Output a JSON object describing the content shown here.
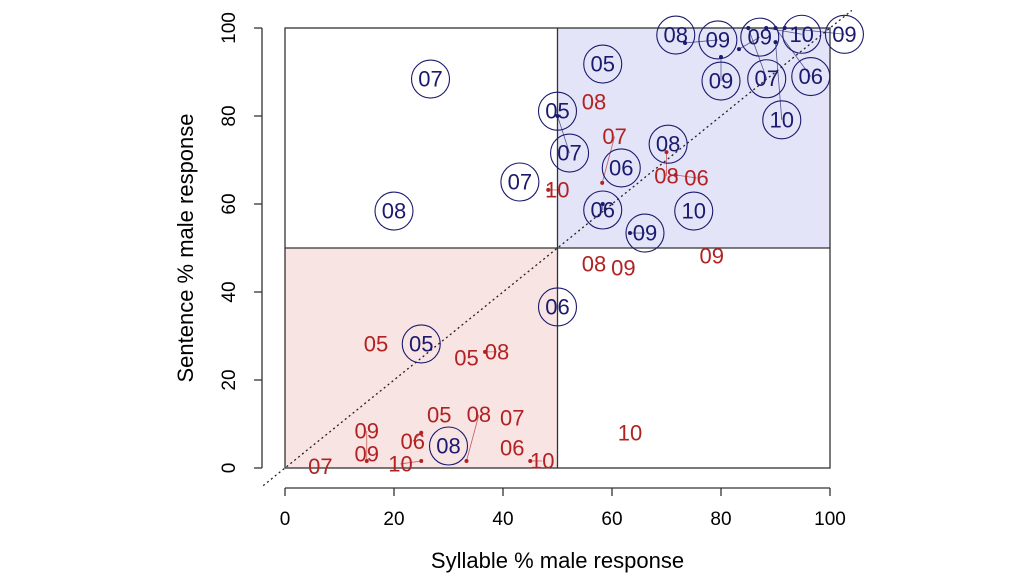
{
  "chart_data": {
    "type": "scatter",
    "title": "",
    "xlabel": "Syllable % male response",
    "ylabel": "Sentence % male response",
    "xlim": [
      0,
      100
    ],
    "ylim": [
      0,
      100
    ],
    "x_ticks": [
      "0",
      "20",
      "40",
      "60",
      "80",
      "100"
    ],
    "y_ticks": [
      "0",
      "20",
      "40",
      "60",
      "80",
      "100"
    ],
    "grid": false,
    "reference_line": {
      "type": "y=x",
      "style": "dotted"
    },
    "quadrant_divider": {
      "x": 50,
      "y": 50
    },
    "shaded_regions": [
      {
        "name": "upper-right",
        "x": [
          50,
          100
        ],
        "y": [
          50,
          100
        ],
        "color": "#e4e4f8"
      },
      {
        "name": "lower-left",
        "x": [
          0,
          50
        ],
        "y": [
          0,
          50
        ],
        "color": "#f9e4e4"
      }
    ],
    "series": [
      {
        "name": "circled",
        "color": "#1a1a6e",
        "marker": "circle",
        "points": [
          {
            "label": "07",
            "x": 26.7,
            "y": 88.4
          },
          {
            "label": "08",
            "x": 20.0,
            "y": 58.4
          },
          {
            "label": "07",
            "x": 43.1,
            "y": 65.0
          },
          {
            "label": "05",
            "x": 50.0,
            "y": 81.1
          },
          {
            "label": "07",
            "x": 50.0,
            "y": 80.0
          },
          {
            "label": "05",
            "x": 58.3,
            "y": 91.8
          },
          {
            "label": "06",
            "x": 61.7,
            "y": 68.2
          },
          {
            "label": "06",
            "x": 58.3,
            "y": 60.0
          },
          {
            "label": "09",
            "x": 63.3,
            "y": 53.4
          },
          {
            "label": "10",
            "x": 75.0,
            "y": 58.4
          },
          {
            "label": "08",
            "x": 70.3,
            "y": 73.6
          },
          {
            "label": "08",
            "x": 71.7,
            "y": 98.4
          },
          {
            "label": "09",
            "x": 73.4,
            "y": 96.6
          },
          {
            "label": "09",
            "x": 80.0,
            "y": 93.4
          },
          {
            "label": "09",
            "x": 83.3,
            "y": 95.2
          },
          {
            "label": "07",
            "x": 85.0,
            "y": 100.0
          },
          {
            "label": "10",
            "x": 88.3,
            "y": 100.0
          },
          {
            "label": "06",
            "x": 90.0,
            "y": 100.0
          },
          {
            "label": "09",
            "x": 91.7,
            "y": 100.0
          },
          {
            "label": "10",
            "x": 90.0,
            "y": 96.8
          },
          {
            "label": "06",
            "x": 50.0,
            "y": 36.6
          },
          {
            "label": "05",
            "x": 25.0,
            "y": 28.2
          },
          {
            "label": "08",
            "x": 30.0,
            "y": 5.0
          }
        ]
      },
      {
        "name": "plain",
        "color": "#b22222",
        "marker": "none",
        "points": [
          {
            "label": "08",
            "x": 56.7,
            "y": 83.2
          },
          {
            "label": "10",
            "x": 48.3,
            "y": 63.2
          },
          {
            "label": "07",
            "x": 58.2,
            "y": 64.8
          },
          {
            "label": "08",
            "x": 70.0,
            "y": 71.8
          },
          {
            "label": "06",
            "x": 71.7,
            "y": 66.6
          },
          {
            "label": "08",
            "x": 56.7,
            "y": 46.4
          },
          {
            "label": "09",
            "x": 61.7,
            "y": 45.0
          },
          {
            "label": "09",
            "x": 78.3,
            "y": 48.2
          },
          {
            "label": "05",
            "x": 16.7,
            "y": 28.2
          },
          {
            "label": "05",
            "x": 33.3,
            "y": 25.0
          },
          {
            "label": "08",
            "x": 36.7,
            "y": 26.4
          },
          {
            "label": "05",
            "x": 28.3,
            "y": 11.4
          },
          {
            "label": "07",
            "x": 41.7,
            "y": 11.4
          },
          {
            "label": "06",
            "x": 25.0,
            "y": 8.0
          },
          {
            "label": "06",
            "x": 41.7,
            "y": 4.6
          },
          {
            "label": "10",
            "x": 63.3,
            "y": 8.0
          },
          {
            "label": "09",
            "x": 15.0,
            "y": 3.2
          },
          {
            "label": "09",
            "x": 15.0,
            "y": 1.6
          },
          {
            "label": "07",
            "x": 6.5,
            "y": -0.3
          },
          {
            "label": "10",
            "x": 25.0,
            "y": 1.6
          },
          {
            "label": "08",
            "x": 33.3,
            "y": 1.6
          },
          {
            "label": "10",
            "x": 45.0,
            "y": 1.6
          }
        ]
      }
    ]
  }
}
